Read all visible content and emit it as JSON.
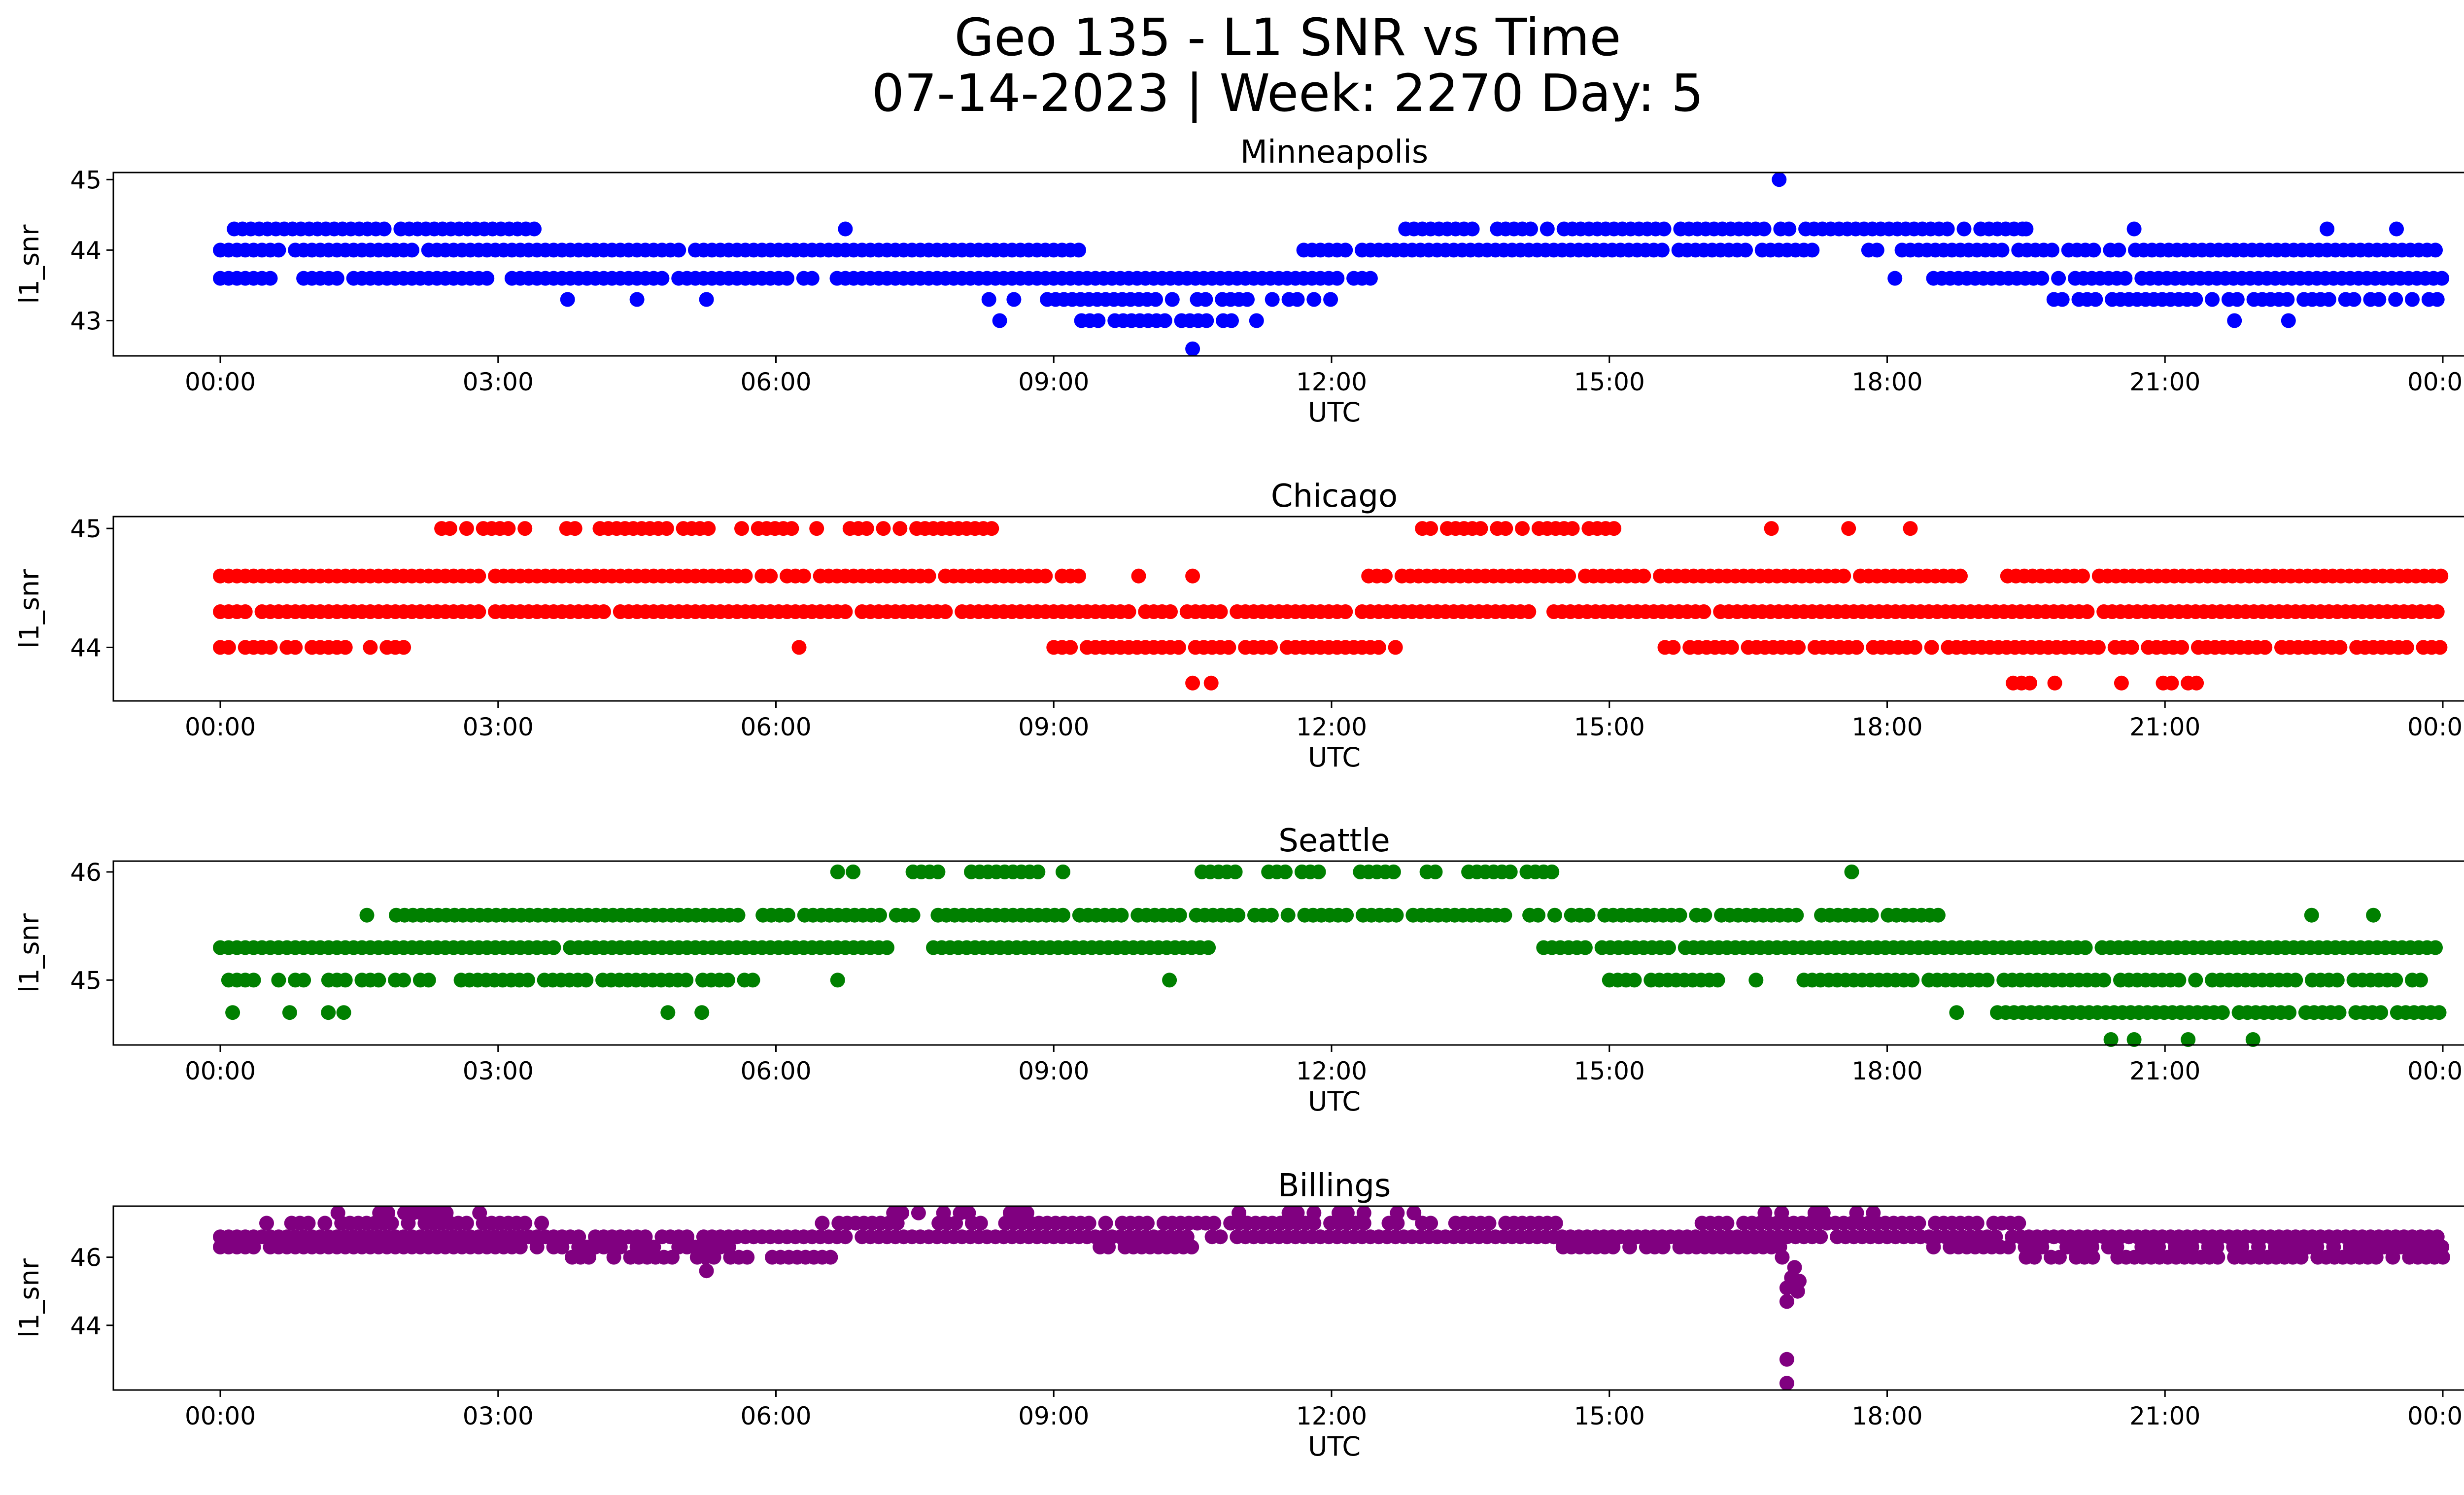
{
  "figure": {
    "title_line1": "Geo 135 - L1 SNR vs Time",
    "title_line2": "07-14-2023 | Week: 2270 Day: 5"
  },
  "chart_data": [
    {
      "type": "scatter",
      "title": "Minneapolis",
      "xlabel": "UTC",
      "ylabel": "l1_snr",
      "color": "#0000ff",
      "xlim": [
        "00:00",
        "24:00"
      ],
      "xticks": [
        "00:00",
        "03:00",
        "06:00",
        "09:00",
        "12:00",
        "15:00",
        "18:00",
        "21:00",
        "00:00"
      ],
      "ylim": [
        42.5,
        45.1
      ],
      "yticks": [
        43,
        44,
        45
      ],
      "grid": false,
      "legend": "none",
      "bands": [
        {
          "y": 44.3,
          "ranges": [
            [
              0.15,
              3.4
            ],
            [
              12.8,
              19.5
            ]
          ],
          "density": 0.9
        },
        {
          "y": 44.0,
          "ranges": [
            [
              0.0,
              9.3
            ],
            [
              11.7,
              17.2
            ],
            [
              17.8,
              24.0
            ]
          ],
          "density": 0.95
        },
        {
          "y": 43.6,
          "ranges": [
            [
              0.0,
              0.6
            ],
            [
              0.9,
              12.5
            ],
            [
              18.5,
              24.0
            ]
          ],
          "density": 0.95
        },
        {
          "y": 43.3,
          "ranges": [
            [
              8.3,
              12.0
            ],
            [
              19.8,
              24.0
            ]
          ],
          "density": 0.75
        },
        {
          "y": 43.0,
          "ranges": [
            [
              9.3,
              11.2
            ]
          ],
          "density": 0.7
        }
      ],
      "extra_points": [
        {
          "x": "16:50",
          "y": 45.0
        },
        {
          "x": "10:30",
          "y": 42.6
        },
        {
          "x": "18:05",
          "y": 43.6
        },
        {
          "x": "08:25",
          "y": 43.0
        },
        {
          "x": "03:45",
          "y": 43.3
        },
        {
          "x": "04:30",
          "y": 43.3
        },
        {
          "x": "05:15",
          "y": 43.3
        },
        {
          "x": "21:45",
          "y": 43.0
        },
        {
          "x": "22:20",
          "y": 43.0
        },
        {
          "x": "06:45",
          "y": 44.3
        },
        {
          "x": "19:30",
          "y": 44.3
        },
        {
          "x": "20:40",
          "y": 44.3
        },
        {
          "x": "22:45",
          "y": 44.3
        },
        {
          "x": "23:30",
          "y": 44.3
        }
      ]
    },
    {
      "type": "scatter",
      "title": "Chicago",
      "xlabel": "UTC",
      "ylabel": "l1_snr",
      "color": "#ff0000",
      "xlim": [
        "00:00",
        "24:00"
      ],
      "xticks": [
        "00:00",
        "03:00",
        "06:00",
        "09:00",
        "12:00",
        "15:00",
        "18:00",
        "21:00",
        "00:00"
      ],
      "ylim": [
        43.55,
        45.1
      ],
      "yticks": [
        44,
        45
      ],
      "grid": false,
      "legend": "none",
      "bands": [
        {
          "y": 45.0,
          "ranges": [
            [
              2.3,
              8.5
            ],
            [
              12.8,
              15.2
            ]
          ],
          "density": 0.7
        },
        {
          "y": 44.6,
          "ranges": [
            [
              0.0,
              9.3
            ],
            [
              12.4,
              18.9
            ],
            [
              19.3,
              24.0
            ]
          ],
          "density": 0.95
        },
        {
          "y": 44.3,
          "ranges": [
            [
              0.0,
              24.0
            ]
          ],
          "density": 0.97
        },
        {
          "y": 44.0,
          "ranges": [
            [
              0.0,
              2.1
            ],
            [
              9.0,
              12.7
            ],
            [
              15.6,
              24.0
            ]
          ],
          "density": 0.8
        },
        {
          "y": 43.7,
          "ranges": [
            [
              19.0,
              21.4
            ]
          ],
          "density": 0.55
        }
      ],
      "extra_points": [
        {
          "x": "10:30",
          "y": 43.7
        },
        {
          "x": "10:42",
          "y": 43.7
        },
        {
          "x": "06:15",
          "y": 44.0
        },
        {
          "x": "16:45",
          "y": 45.0
        },
        {
          "x": "17:35",
          "y": 45.0
        },
        {
          "x": "18:15",
          "y": 45.0
        },
        {
          "x": "09:55",
          "y": 44.6
        },
        {
          "x": "10:30",
          "y": 44.6
        }
      ]
    },
    {
      "type": "scatter",
      "title": "Seattle",
      "xlabel": "UTC",
      "ylabel": "l1_snr",
      "color": "#008000",
      "xlim": [
        "00:00",
        "24:00"
      ],
      "xticks": [
        "00:00",
        "03:00",
        "06:00",
        "09:00",
        "12:00",
        "15:00",
        "18:00",
        "21:00",
        "00:00"
      ],
      "ylim": [
        44.4,
        46.1
      ],
      "yticks": [
        45,
        46
      ],
      "grid": false,
      "legend": "none",
      "bands": [
        {
          "y": 46.0,
          "ranges": [
            [
              7.3,
              9.1
            ],
            [
              10.6,
              14.4
            ]
          ],
          "density": 0.75
        },
        {
          "y": 45.6,
          "ranges": [
            [
              1.9,
              18.6
            ]
          ],
          "density": 0.85
        },
        {
          "y": 45.3,
          "ranges": [
            [
              0.0,
              7.3
            ],
            [
              7.7,
              10.7
            ],
            [
              14.2,
              24.0
            ]
          ],
          "density": 0.95
        },
        {
          "y": 45.0,
          "ranges": [
            [
              0.0,
              2.3
            ],
            [
              2.6,
              5.8
            ],
            [
              15.0,
              16.2
            ],
            [
              17.1,
              24.0
            ]
          ],
          "density": 0.85
        },
        {
          "y": 44.7,
          "ranges": [
            [
              19.1,
              24.0
            ]
          ],
          "density": 0.85
        }
      ],
      "extra_points": [
        {
          "x": "00:08",
          "y": 44.7
        },
        {
          "x": "00:45",
          "y": 44.7
        },
        {
          "x": "01:10",
          "y": 44.7
        },
        {
          "x": "01:20",
          "y": 44.7
        },
        {
          "x": "04:50",
          "y": 44.7
        },
        {
          "x": "05:12",
          "y": 44.7
        },
        {
          "x": "06:40",
          "y": 46.0
        },
        {
          "x": "06:50",
          "y": 46.0
        },
        {
          "x": "17:37",
          "y": 46.0
        },
        {
          "x": "01:35",
          "y": 45.6
        },
        {
          "x": "22:35",
          "y": 45.6
        },
        {
          "x": "23:15",
          "y": 45.6
        },
        {
          "x": "06:40",
          "y": 45.0
        },
        {
          "x": "10:15",
          "y": 45.0
        },
        {
          "x": "16:35",
          "y": 45.0
        },
        {
          "x": "20:25",
          "y": 44.45
        },
        {
          "x": "20:40",
          "y": 44.45
        },
        {
          "x": "21:15",
          "y": 44.45
        },
        {
          "x": "21:57",
          "y": 44.45
        },
        {
          "x": "18:45",
          "y": 44.7
        }
      ]
    },
    {
      "type": "scatter",
      "title": "Billings",
      "xlabel": "UTC",
      "ylabel": "l1_snr",
      "color": "#800080",
      "xlim": [
        "00:00",
        "24:00"
      ],
      "xticks": [
        "00:00",
        "03:00",
        "06:00",
        "09:00",
        "12:00",
        "15:00",
        "18:00",
        "21:00",
        "00:00"
      ],
      "ylim": [
        42.1,
        47.5
      ],
      "yticks": [
        44,
        46
      ],
      "grid": false,
      "legend": "none",
      "bands": [
        {
          "y": 47.3,
          "ranges": [
            [
              1.0,
              2.8
            ],
            [
              7.0,
              9.0
            ],
            [
              11.0,
              13.0
            ],
            [
              16.5,
              18.0
            ]
          ],
          "density": 0.45
        },
        {
          "y": 47.0,
          "ranges": [
            [
              0.5,
              3.5
            ],
            [
              6.5,
              14.5
            ],
            [
              16.0,
              19.5
            ]
          ],
          "density": 0.8
        },
        {
          "y": 46.6,
          "ranges": [
            [
              0.0,
              24.0
            ]
          ],
          "density": 0.97
        },
        {
          "y": 46.3,
          "ranges": [
            [
              0.0,
              5.5
            ],
            [
              9.5,
              10.5
            ],
            [
              14.5,
              17.0
            ],
            [
              18.5,
              24.0
            ]
          ],
          "density": 0.85
        },
        {
          "y": 46.0,
          "ranges": [
            [
              3.8,
              6.6
            ],
            [
              19.5,
              24.0
            ]
          ],
          "density": 0.8
        }
      ],
      "extra_points": [
        {
          "x": "05:15",
          "y": 45.6
        },
        {
          "x": "16:55",
          "y": 43.0
        },
        {
          "x": "16:55",
          "y": 42.3
        },
        {
          "x": "16:55",
          "y": 44.7
        },
        {
          "x": "16:55",
          "y": 45.1
        },
        {
          "x": "16:58",
          "y": 45.4
        },
        {
          "x": "17:00",
          "y": 45.7
        },
        {
          "x": "17:02",
          "y": 45.0
        },
        {
          "x": "17:03",
          "y": 45.3
        },
        {
          "x": "16:52",
          "y": 46.0
        }
      ]
    }
  ]
}
